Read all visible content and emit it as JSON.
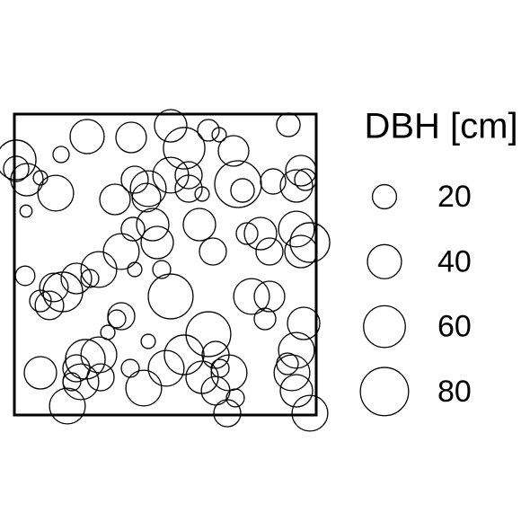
{
  "chart_data": {
    "type": "scatter",
    "x": [
      2,
      2,
      14,
      29,
      13,
      46,
      52,
      81,
      130,
      174,
      189,
      216,
      228,
      244,
      305,
      319,
      314,
      288,
      249,
      254,
      194,
      174,
      134,
      112,
      147,
      209,
      206,
      154,
      159,
      132,
      119,
      94,
      69,
      44,
      39,
      54,
      12,
      84,
      164,
      174,
      221,
      259,
      274,
      284,
      314,
      329,
      319,
      264,
      279,
      284,
      322,
      314,
      309,
      314,
      329,
      304,
      239,
      246,
      237,
      224,
      216,
      189,
      169,
      149,
      144,
      129,
      119,
      114,
      104,
      94,
      79,
      69,
      74,
      59,
      29,
      64,
      96,
      229,
      209,
      224,
      29,
      134,
      149,
      324,
      194
    ],
    "y": [
      284,
      274,
      262,
      264,
      227,
      247,
      290,
      310,
      309,
      322,
      297,
      317,
      312,
      294,
      323,
      272,
      255,
      260,
      257,
      250,
      252,
      267,
      262,
      240,
      242,
      246,
      212,
      212,
      192,
      207,
      182,
      162,
      152,
      142,
      122,
      137,
      155,
      152,
      162,
      132,
      182,
      202,
      202,
      182,
      207,
      192,
      182,
      132,
      107,
      132,
      102,
      72,
      47,
      27,
      2,
      57,
      47,
      19,
      2,
      67,
      90,
      67,
      52,
      82,
      30,
      52,
      110,
      107,
      92,
      67,
      62,
      52,
      37,
      10,
      47,
      37,
      42,
      52,
      42,
      27,
      127,
      162,
      252,
      262,
      267
    ],
    "sizes": [
      54,
      22,
      36,
      7,
      5,
      44,
      9,
      40,
      32,
      36,
      59,
      16,
      7,
      32,
      19,
      32,
      36,
      22,
      75,
      19,
      25,
      44,
      25,
      32,
      28,
      7,
      36,
      36,
      36,
      19,
      44,
      44,
      32,
      28,
      28,
      54,
      13,
      11,
      11,
      69,
      25,
      16,
      36,
      25,
      44,
      54,
      36,
      44,
      16,
      32,
      36,
      44,
      44,
      36,
      44,
      16,
      44,
      11,
      25,
      25,
      69,
      54,
      44,
      7,
      44,
      11,
      25,
      11,
      7,
      44,
      54,
      25,
      44,
      44,
      36,
      11,
      25,
      11,
      36,
      28,
      16,
      7,
      44,
      16,
      25
    ],
    "xlim": [
      0,
      336
    ],
    "ylim": [
      0,
      335
    ],
    "legend": {
      "title": "DBH [cm]",
      "values": [
        20,
        40,
        60,
        80
      ]
    }
  }
}
